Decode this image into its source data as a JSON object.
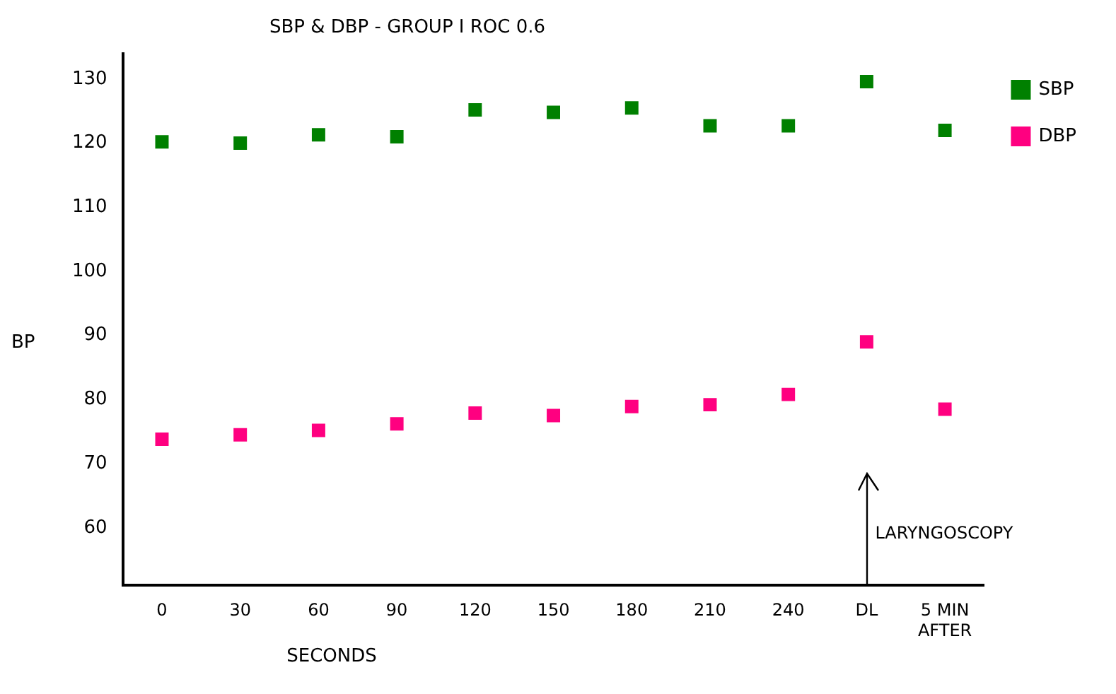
{
  "chart_data": {
    "type": "scatter",
    "title": "SBP & DBP - GROUP I ROC 0.6",
    "xlabel": "SECONDS",
    "ylabel": "BP",
    "categories": [
      "0",
      "30",
      "60",
      "90",
      "120",
      "150",
      "180",
      "210",
      "240",
      "DL",
      "5 MIN AFTER"
    ],
    "series": [
      {
        "name": "SBP",
        "color": "#008000",
        "values": [
          120.2,
          120,
          121.3,
          121,
          125.2,
          124.8,
          125.5,
          122.7,
          122.7,
          129.6,
          122
        ]
      },
      {
        "name": "DBP",
        "color": "#ff0080",
        "values": [
          73.8,
          74.5,
          75.2,
          76.2,
          77.9,
          77.5,
          78.9,
          79.2,
          80.8,
          89,
          78.5
        ]
      }
    ],
    "ylim": [
      51,
      134
    ],
    "yticks": [
      60,
      70,
      80,
      90,
      100,
      110,
      120,
      130
    ],
    "annotations": [
      "LARYNGOSCOPY"
    ],
    "grid": false,
    "legend": "top right",
    "marker": "square"
  }
}
